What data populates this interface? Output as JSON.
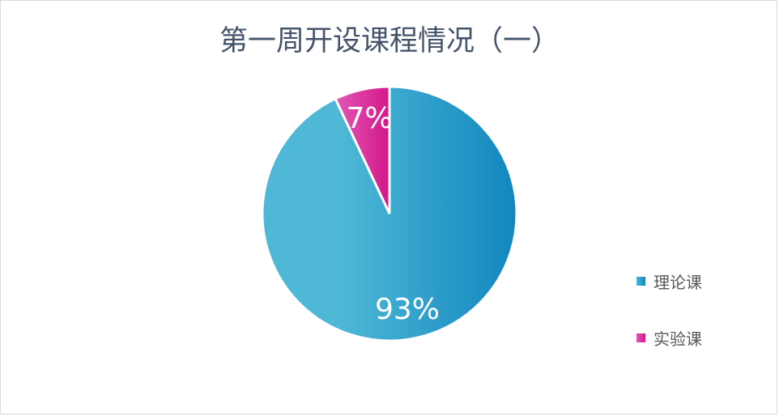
{
  "chart_data": {
    "type": "pie",
    "title": "第一周开设课程情况（一）",
    "categories": [
      "理论课",
      "实验课"
    ],
    "values": [
      93,
      7
    ],
    "data_labels": [
      "93%",
      "7%"
    ],
    "colors": [
      [
        "#4fb8d6",
        "#1186bf"
      ],
      [
        "#e258b5",
        "#d3188a"
      ]
    ],
    "legend_position": "right"
  }
}
